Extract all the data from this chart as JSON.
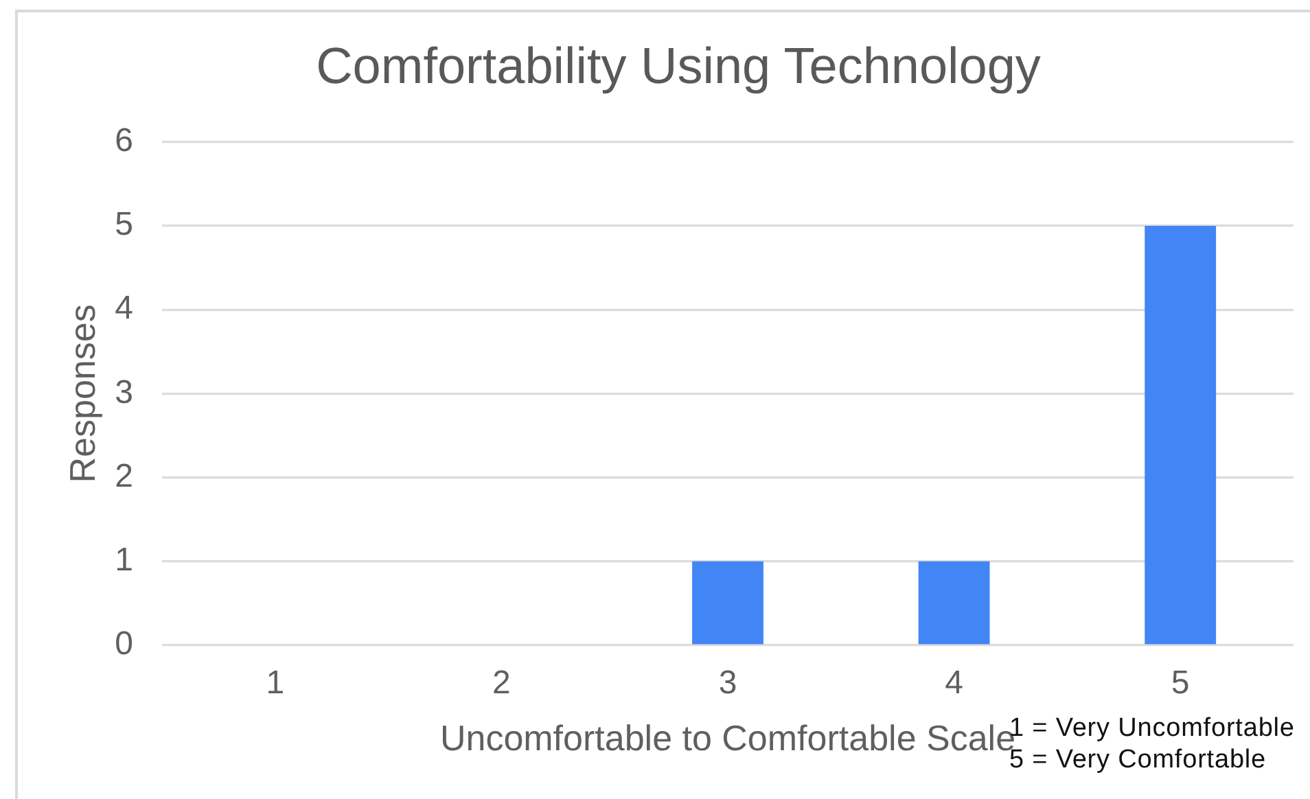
{
  "chart_data": {
    "type": "bar",
    "title": "Comfortability Using Technology",
    "xlabel": "Uncomfortable to Comfortable Scale",
    "ylabel": "Responses",
    "categories": [
      "1",
      "2",
      "3",
      "4",
      "5"
    ],
    "values": [
      0,
      0,
      1,
      1,
      5
    ],
    "color": "#4285f4",
    "ylim": [
      0,
      6
    ],
    "yticks": [
      0,
      1,
      2,
      3,
      4,
      5,
      6
    ],
    "grid": "y",
    "annotations": [
      "1 = Very Uncomfortable",
      "5 = Very Comfortable"
    ]
  }
}
